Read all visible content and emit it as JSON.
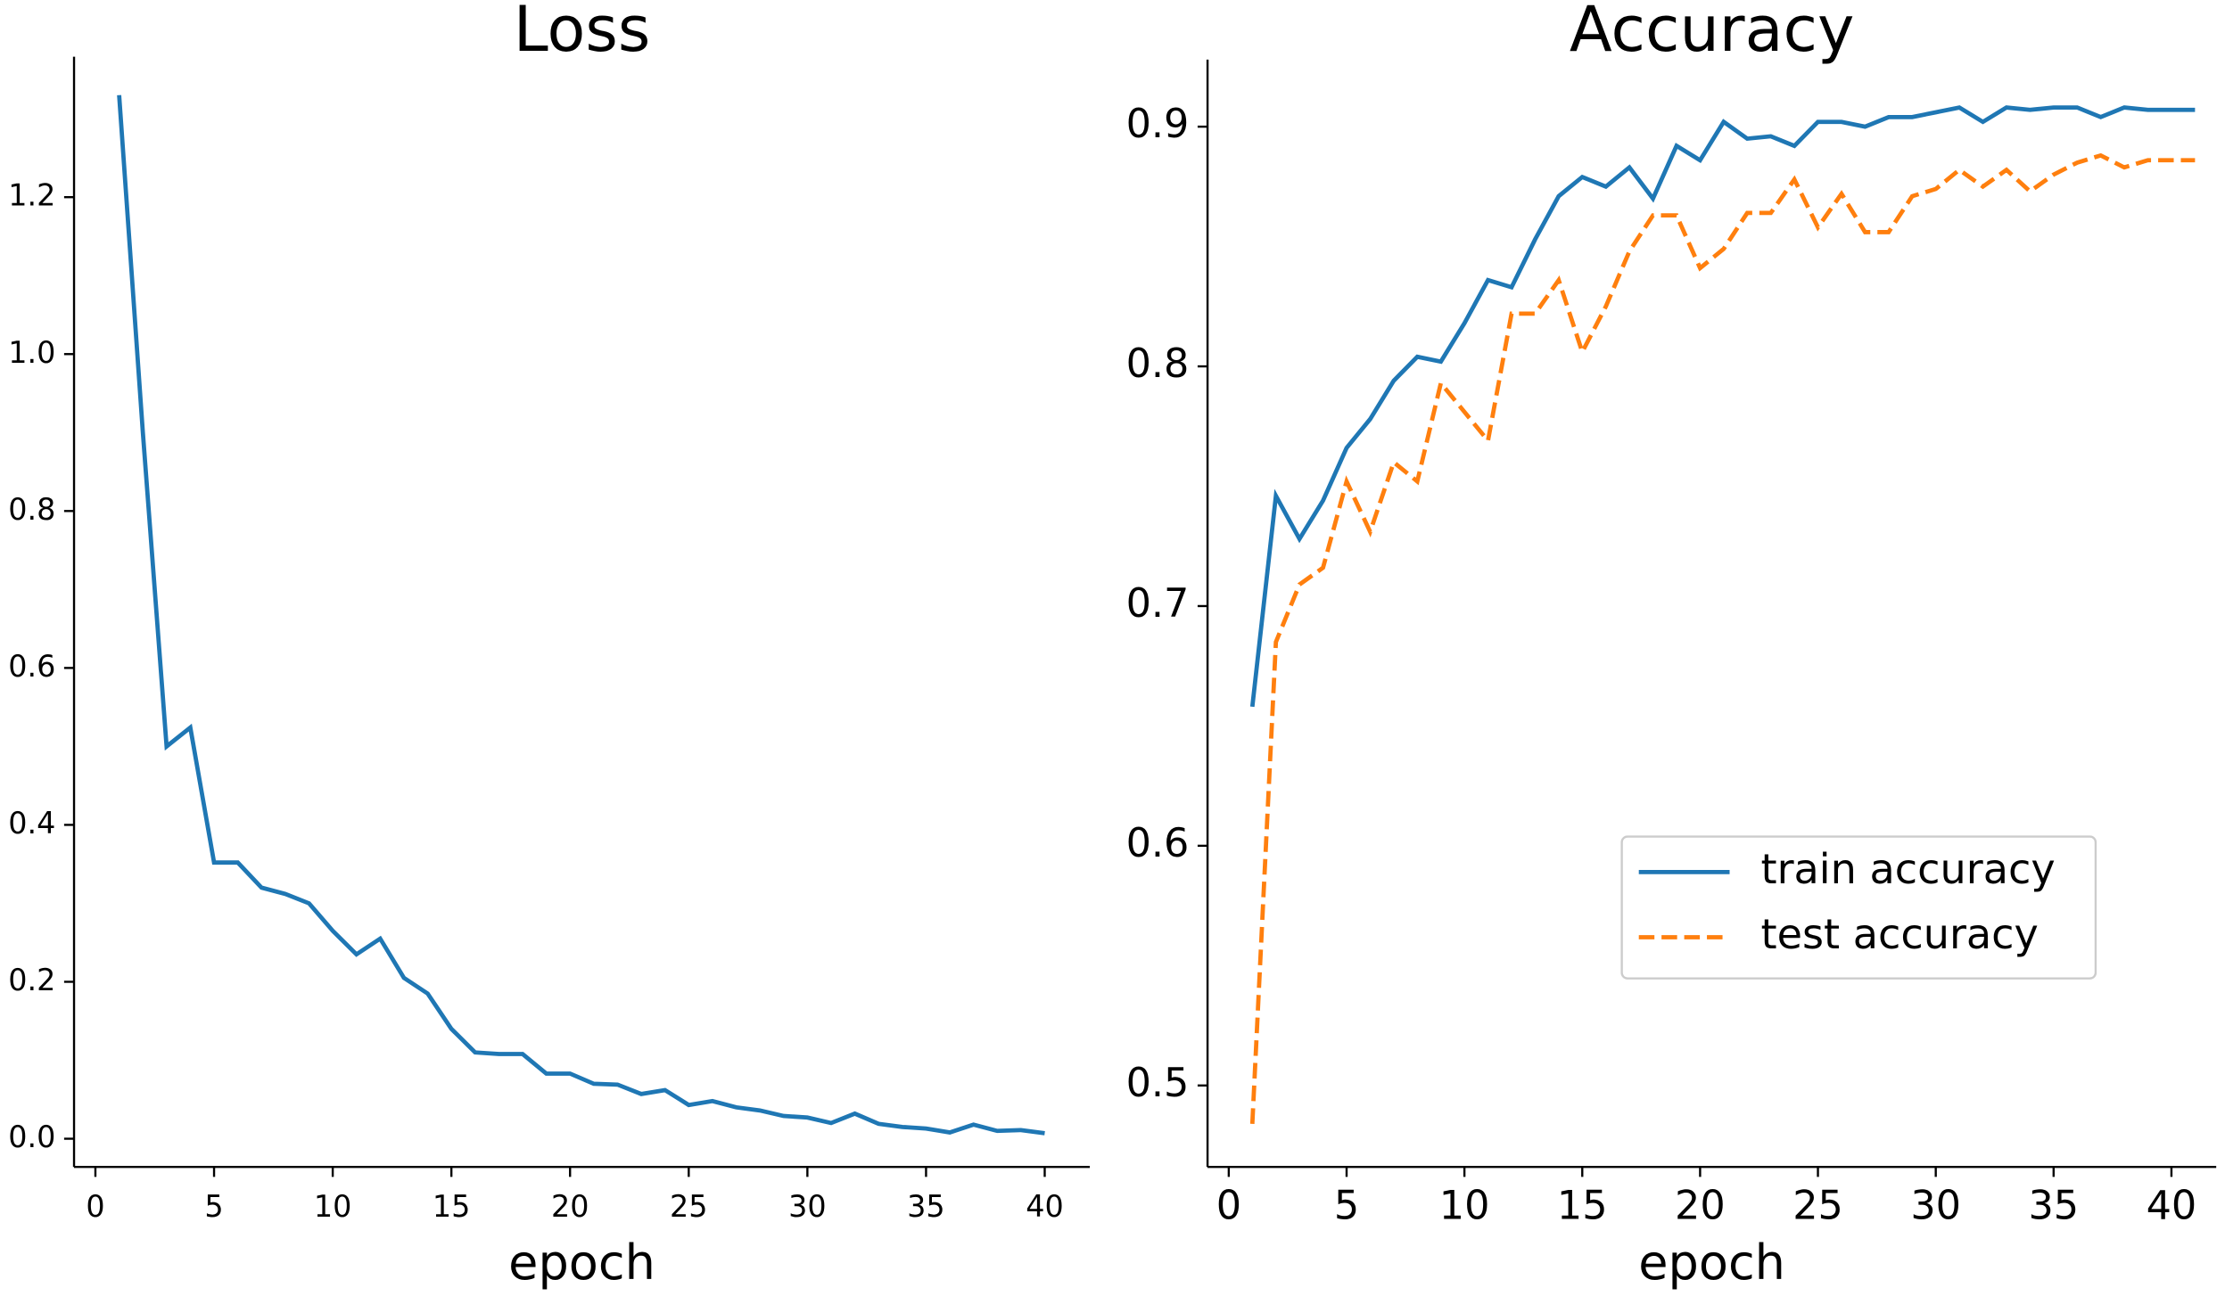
{
  "chart_data": [
    {
      "type": "line",
      "title": "Loss",
      "x_label": "epoch",
      "x": [
        1,
        2,
        3,
        4,
        5,
        6,
        7,
        8,
        9,
        10,
        11,
        12,
        13,
        14,
        15,
        16,
        17,
        18,
        19,
        20,
        21,
        22,
        23,
        24,
        25,
        26,
        27,
        28,
        29,
        30,
        31,
        32,
        33,
        34,
        35,
        36,
        37,
        38,
        39,
        40
      ],
      "values": [
        1.33,
        0.9,
        0.5,
        0.524,
        0.352,
        0.352,
        0.32,
        0.312,
        0.3,
        0.265,
        0.235,
        0.255,
        0.205,
        0.185,
        0.14,
        0.11,
        0.108,
        0.108,
        0.083,
        0.083,
        0.07,
        0.069,
        0.057,
        0.062,
        0.043,
        0.048,
        0.04,
        0.036,
        0.029,
        0.027,
        0.02,
        0.032,
        0.019,
        0.015,
        0.013,
        0.008,
        0.018,
        0.01,
        0.011,
        0.007
      ],
      "color": "#1f77b4",
      "xlim": [
        -0.9,
        41.9
      ],
      "ylim": [
        -0.036,
        1.379
      ],
      "xticks": [
        0,
        5,
        10,
        15,
        20,
        25,
        30,
        35,
        40
      ],
      "yticks": [
        {
          "value": 0,
          "label": "0.0"
        },
        {
          "value": 0.2,
          "label": "0.2"
        },
        {
          "value": 0.4,
          "label": "0.4"
        },
        {
          "value": 0.6,
          "label": "0.6"
        },
        {
          "value": 0.8,
          "label": "0.8"
        },
        {
          "value": 1,
          "label": "1.0"
        },
        {
          "value": 1.2,
          "label": "1.2"
        }
      ]
    },
    {
      "type": "line",
      "title": "Accuracy",
      "x_label": "epoch",
      "legend": "lower right",
      "x": [
        1,
        2,
        3,
        4,
        5,
        6,
        7,
        8,
        9,
        10,
        11,
        12,
        13,
        14,
        15,
        16,
        17,
        18,
        19,
        20,
        21,
        22,
        23,
        24,
        25,
        26,
        27,
        28,
        29,
        30,
        31,
        32,
        33,
        34,
        35,
        36,
        37,
        38,
        39,
        40,
        41
      ],
      "series": [
        {
          "name": "train accuracy",
          "color": "#1f77b4",
          "linestyle": "solid",
          "values": [
            0.658,
            0.746,
            0.728,
            0.744,
            0.766,
            0.778,
            0.794,
            0.804,
            0.802,
            0.818,
            0.836,
            0.833,
            0.853,
            0.871,
            0.879,
            0.875,
            0.883,
            0.87,
            0.892,
            0.886,
            0.902,
            0.895,
            0.896,
            0.892,
            0.902,
            0.902,
            0.9,
            0.904,
            0.904,
            0.906,
            0.908,
            0.902,
            0.908,
            0.907,
            0.908,
            0.908,
            0.904,
            0.908,
            0.907,
            0.907,
            0.907
          ]
        },
        {
          "name": "test accuracy",
          "color": "#ff7f0e",
          "linestyle": "dashed",
          "values": [
            0.484,
            0.685,
            0.709,
            0.716,
            0.752,
            0.731,
            0.76,
            0.752,
            0.793,
            0.781,
            0.769,
            0.822,
            0.822,
            0.836,
            0.806,
            0.825,
            0.848,
            0.863,
            0.863,
            0.841,
            0.849,
            0.864,
            0.864,
            0.878,
            0.858,
            0.872,
            0.856,
            0.856,
            0.871,
            0.874,
            0.882,
            0.875,
            0.882,
            0.873,
            0.88,
            0.885,
            0.888,
            0.883,
            0.886,
            0.886,
            0.886
          ]
        }
      ],
      "xlim": [
        -0.9,
        41.9
      ],
      "ylim": [
        0.466,
        0.928
      ],
      "xticks": [
        0,
        5,
        10,
        15,
        20,
        25,
        30,
        35,
        40
      ],
      "yticks": [
        0.5,
        0.6,
        0.7,
        0.8,
        0.9
      ]
    }
  ]
}
